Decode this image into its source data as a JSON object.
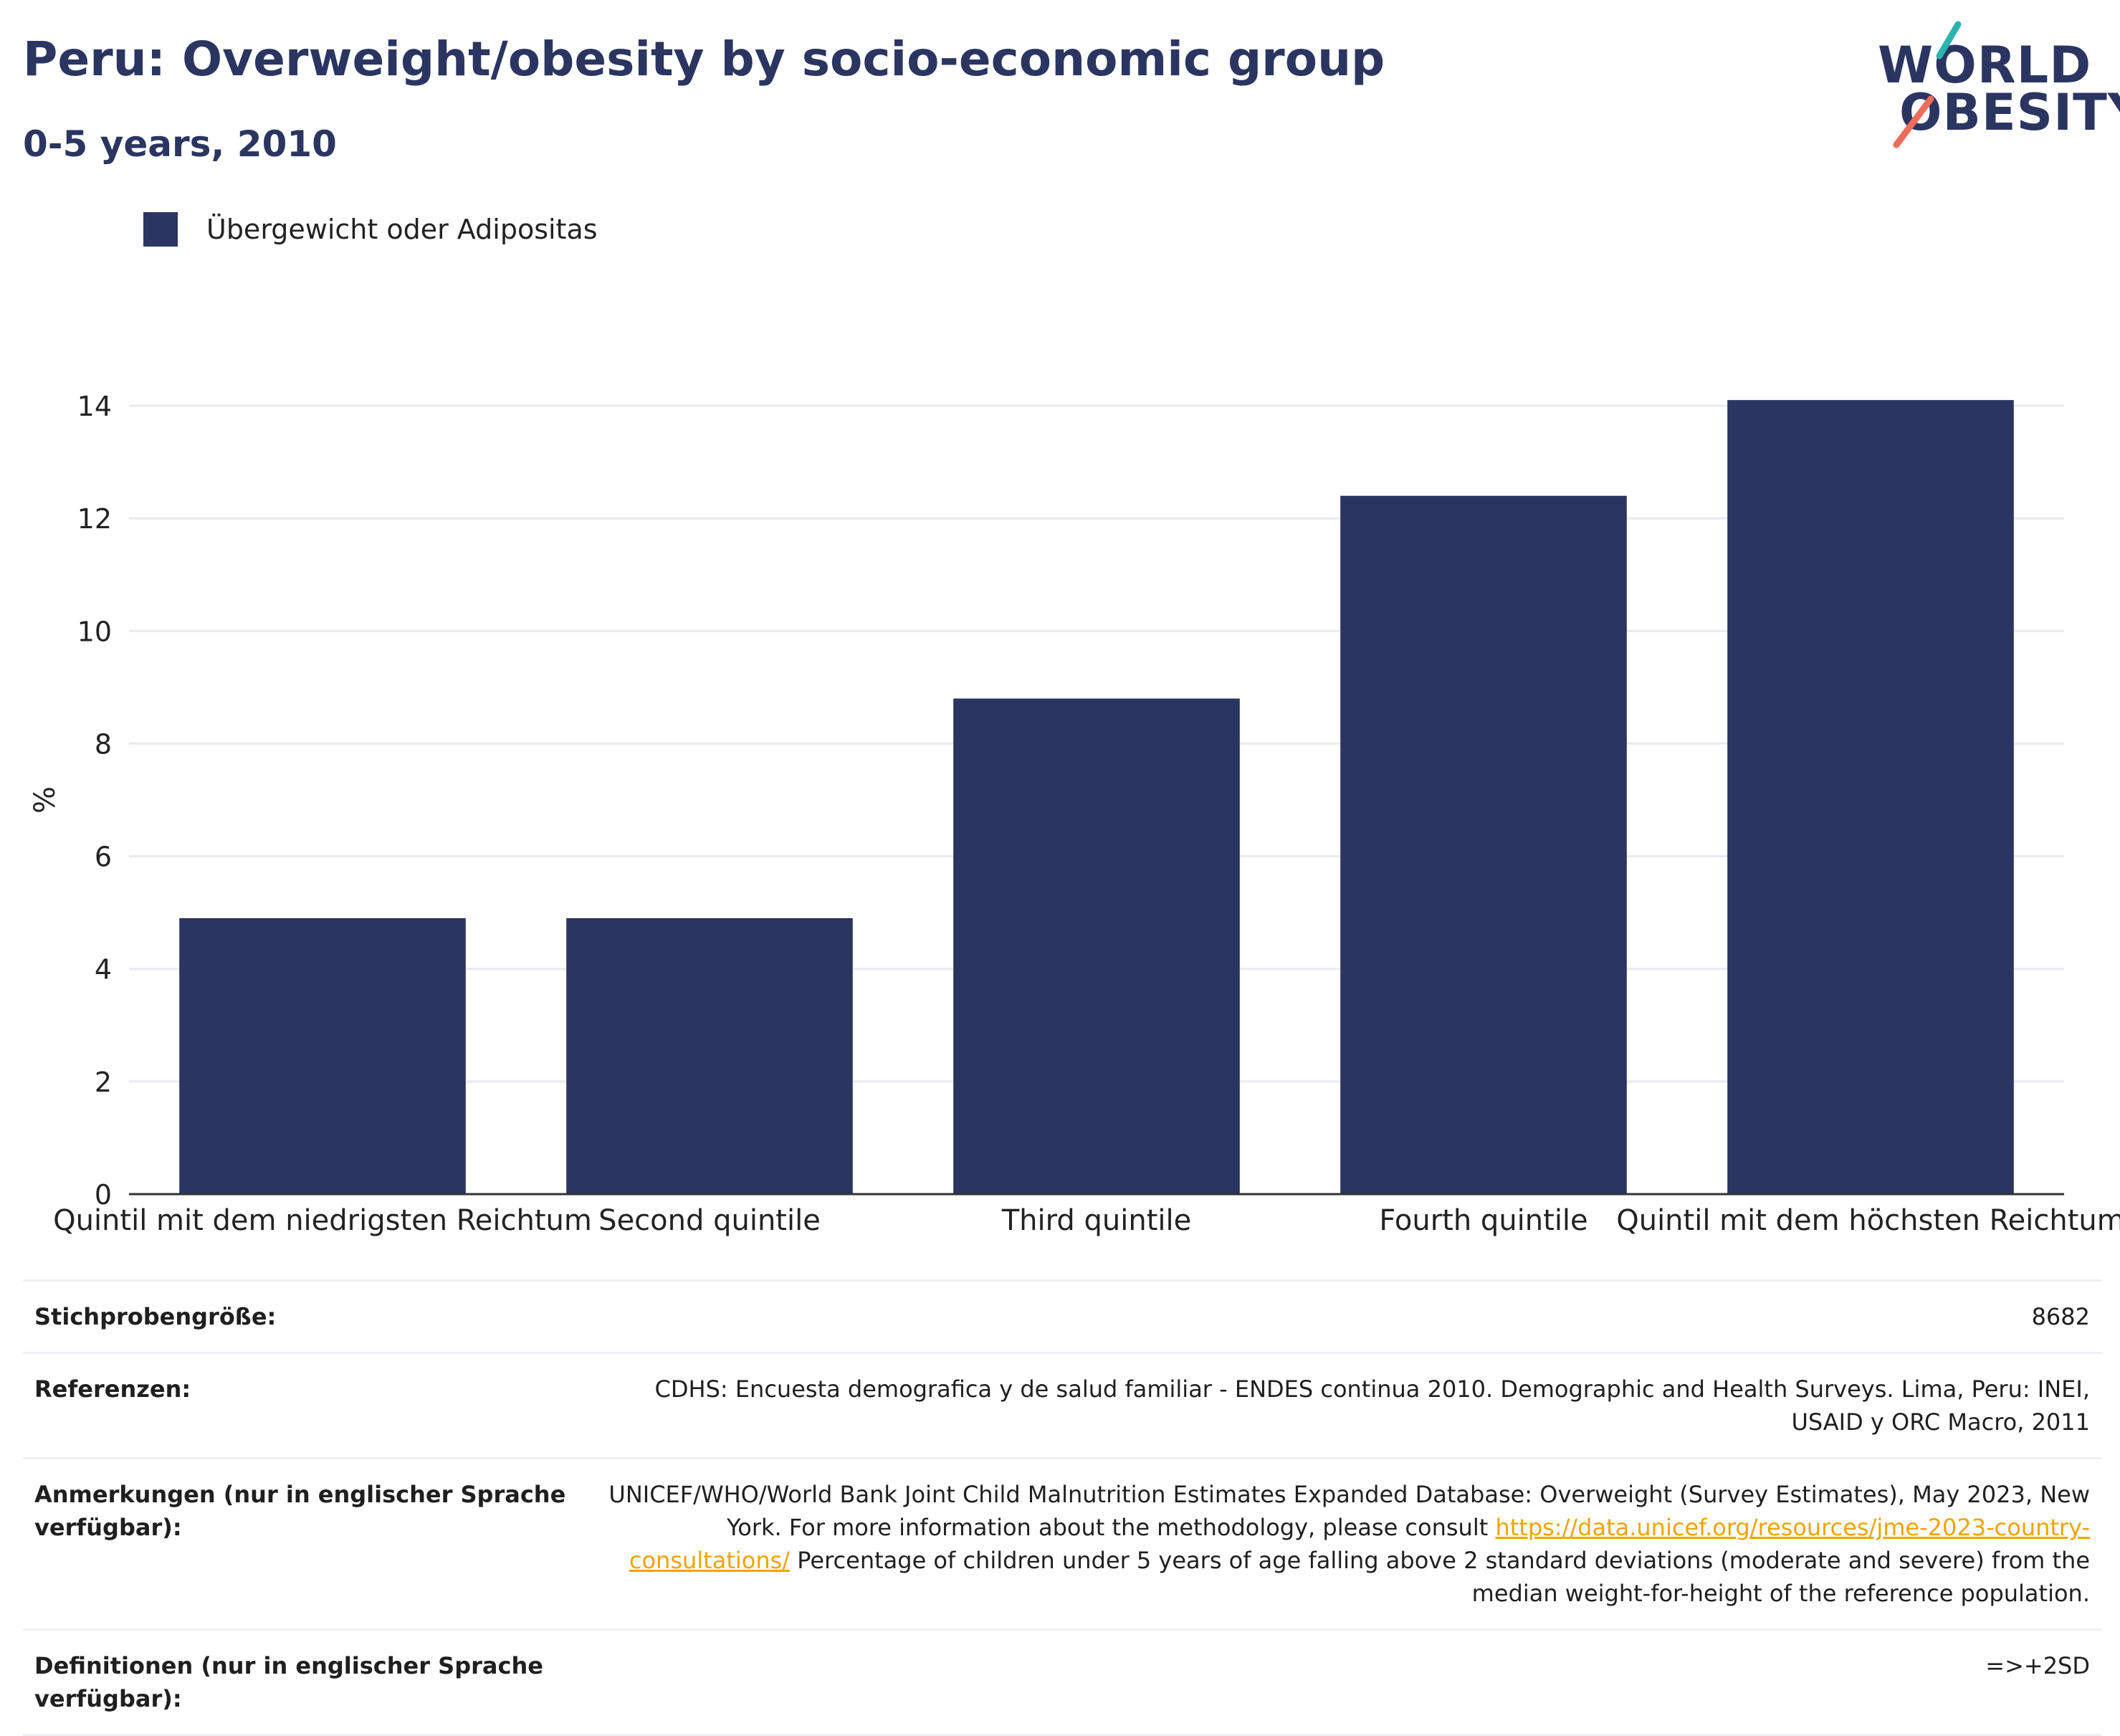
{
  "title": "Peru: Overweight/obesity by socio-economic group",
  "subtitle": "0-5 years, 2010",
  "logo": {
    "line1": "WORLD",
    "line2": "OBESITY"
  },
  "legend": {
    "label": "Übergewicht oder Adipositas"
  },
  "colors": {
    "bar": "#2a3561",
    "accent_teal": "#2bb3b1",
    "accent_coral": "#ef6c5a",
    "link": "#f0a400"
  },
  "chart_data": {
    "type": "bar",
    "categories": [
      "Quintil mit dem niedrigsten Reichtum",
      "Second quintile",
      "Third quintile",
      "Fourth quintile",
      "Quintil mit dem höchsten Reichtum"
    ],
    "series": [
      {
        "name": "Übergewicht oder Adipositas",
        "values": [
          4.9,
          4.9,
          8.8,
          12.4,
          14.1
        ]
      }
    ],
    "ylabel": "%",
    "xlabel": "",
    "ylim": [
      0,
      14
    ],
    "yticks": [
      0,
      2,
      4,
      6,
      8,
      10,
      12,
      14
    ],
    "grid": true,
    "legend_position": "top-left"
  },
  "footer": {
    "sample_size_label": "Stichprobengröße:",
    "sample_size_value": "8682",
    "references_label": "Referenzen:",
    "references_value": "CDHS: Encuesta demografica y de salud familiar - ENDES continua 2010. Demographic and Health Surveys. Lima, Peru: INEI, USAID y ORC Macro, 2011",
    "notes_label": "Anmerkungen (nur in englischer Sprache verfügbar):",
    "notes_value_1": "UNICEF/WHO/World Bank Joint Child Malnutrition Estimates Expanded Database: Overweight (Survey Estimates), May 2023, New York. For more information about the methodology, please consult",
    "notes_link": "https://data.unicef.org/resources/jme-2023-country-consultations/",
    "notes_value_2": "Percentage of children under 5 years of age falling above 2 standard deviations (moderate and severe) from the median weight-for-height of the reference population.",
    "definitions_label": "Definitionen (nur in englischer Sprache verfügbar):",
    "definitions_value": "=>+2SD"
  }
}
